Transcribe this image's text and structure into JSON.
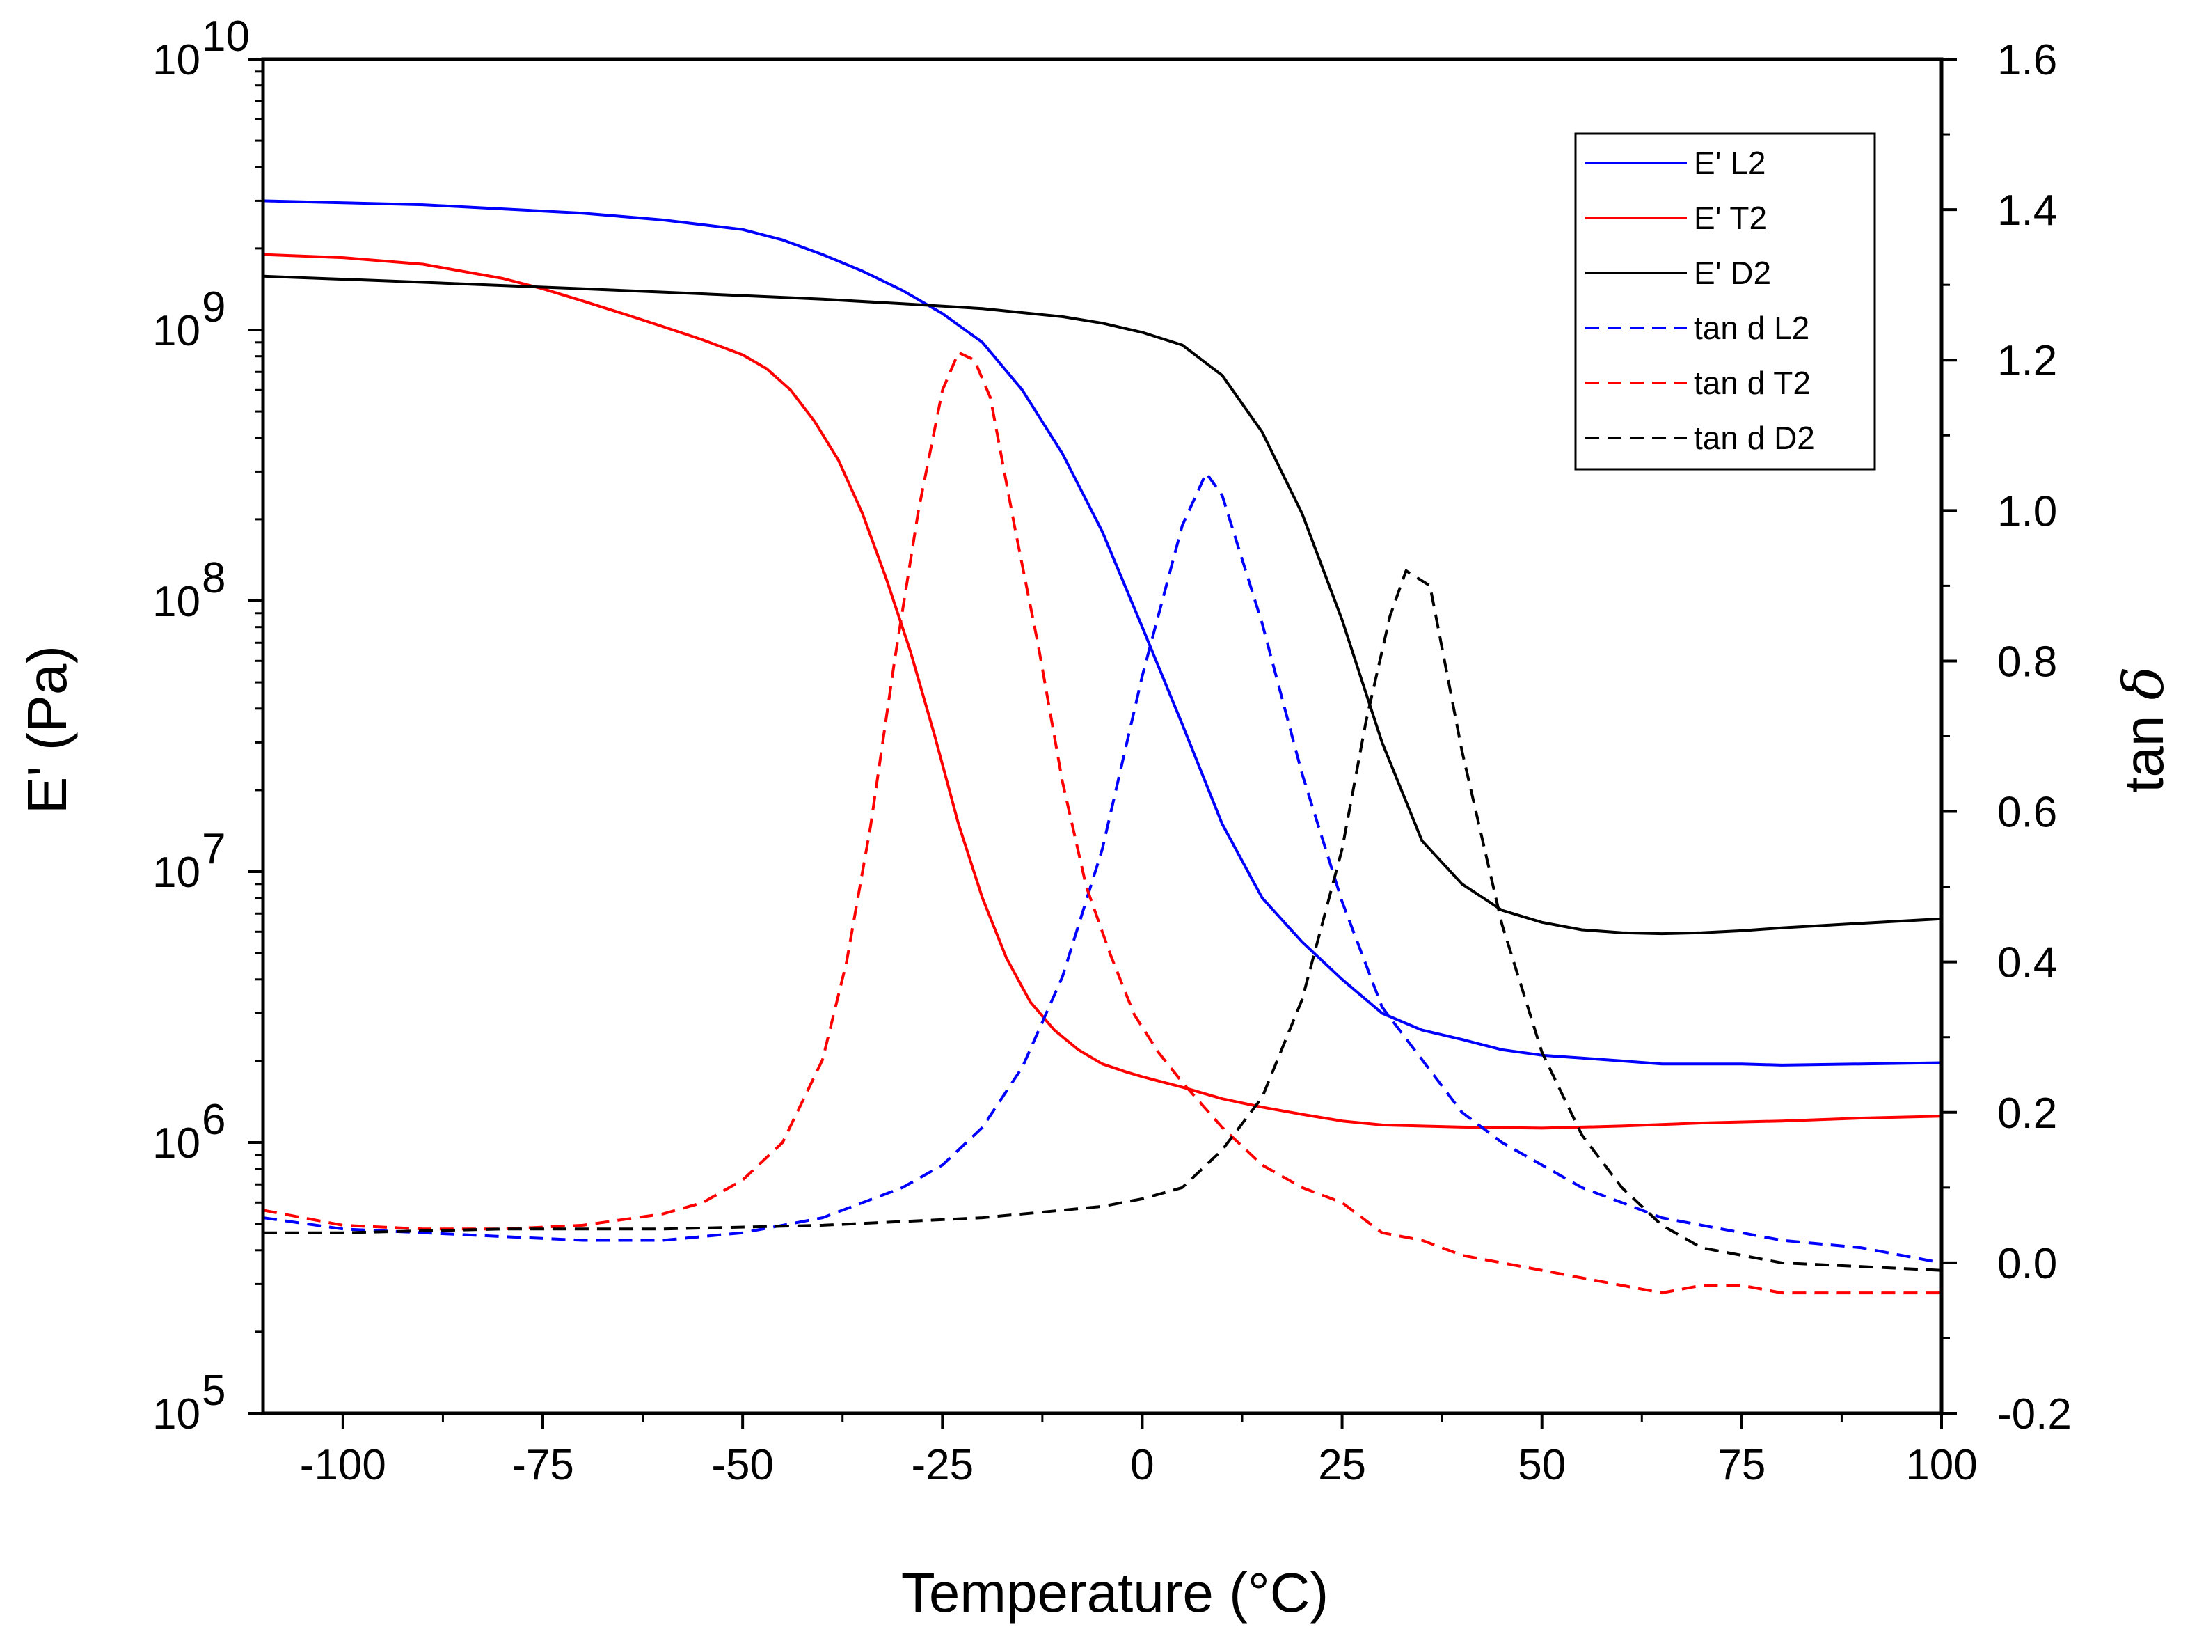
{
  "chart_data": {
    "type": "line",
    "title": "",
    "xlabel": "Temperature (°C)",
    "ylabel_left": "E' (Pa)",
    "ylabel_right_prefix": "tan ",
    "ylabel_right_symbol": "δ",
    "xlim": [
      -110,
      100
    ],
    "ylim_left_log10": [
      5,
      10
    ],
    "ylim_right": [
      -0.2,
      1.6
    ],
    "x_ticks": [
      -100,
      -75,
      -50,
      -25,
      0,
      25,
      50,
      75,
      100
    ],
    "x_tick_labels": [
      "-100",
      "-75",
      "-50",
      "-25",
      "0",
      "25",
      "50",
      "75",
      "100"
    ],
    "left_ticks": [
      {
        "base": "10",
        "exp": "5",
        "log": 5
      },
      {
        "base": "10",
        "exp": "6",
        "log": 6
      },
      {
        "base": "10",
        "exp": "7",
        "log": 7
      },
      {
        "base": "10",
        "exp": "8",
        "log": 8
      },
      {
        "base": "10",
        "exp": "9",
        "log": 9
      },
      {
        "base": "10",
        "exp": "10",
        "log": 10
      }
    ],
    "right_ticks": [
      -0.2,
      0.0,
      0.2,
      0.4,
      0.6,
      0.8,
      1.0,
      1.2,
      1.4,
      1.6
    ],
    "right_tick_labels": [
      "-0.2",
      "0.0",
      "0.2",
      "0.4",
      "0.6",
      "0.8",
      "1.0",
      "1.2",
      "1.4",
      "1.6"
    ],
    "legend_position": "top-right",
    "series": [
      {
        "name": "E' L2",
        "axis": "left",
        "color": "#0000ff",
        "dash": "solid",
        "x": [
          -110,
          -100,
          -90,
          -80,
          -70,
          -60,
          -50,
          -45,
          -40,
          -35,
          -30,
          -25,
          -20,
          -15,
          -10,
          -5,
          0,
          5,
          10,
          15,
          20,
          25,
          30,
          35,
          40,
          45,
          50,
          55,
          60,
          65,
          70,
          75,
          80,
          90,
          100
        ],
        "y": [
          3000000000.0,
          2950000000.0,
          2900000000.0,
          2800000000.0,
          2700000000.0,
          2550000000.0,
          2350000000.0,
          2150000000.0,
          1900000000.0,
          1650000000.0,
          1400000000.0,
          1150000000.0,
          900000000.0,
          600000000.0,
          350000000.0,
          180000000.0,
          80000000.0,
          35000000.0,
          15000000.0,
          8000000.0,
          5500000.0,
          4000000.0,
          3000000.0,
          2600000.0,
          2400000.0,
          2200000.0,
          2100000.0,
          2050000.0,
          2000000.0,
          1950000.0,
          1950000.0,
          1950000.0,
          1930000.0,
          1950000.0,
          1970000.0
        ]
      },
      {
        "name": "E' T2",
        "axis": "left",
        "color": "#ff0000",
        "dash": "solid",
        "x": [
          -110,
          -100,
          -90,
          -80,
          -75,
          -70,
          -65,
          -60,
          -55,
          -50,
          -47,
          -44,
          -41,
          -38,
          -35,
          -32,
          -29,
          -26,
          -23,
          -20,
          -17,
          -14,
          -11,
          -8,
          -5,
          -2,
          0,
          5,
          10,
          15,
          20,
          25,
          30,
          40,
          50,
          60,
          70,
          80,
          90,
          100
        ],
        "y": [
          1900000000.0,
          1850000000.0,
          1750000000.0,
          1550000000.0,
          1420000000.0,
          1280000000.0,
          1150000000.0,
          1030000000.0,
          920000000.0,
          810000000.0,
          720000000.0,
          600000000.0,
          460000000.0,
          330000000.0,
          210000000.0,
          120000000.0,
          65000000.0,
          32000000.0,
          15000000.0,
          8000000.0,
          4800000.0,
          3300000.0,
          2600000.0,
          2200000.0,
          1950000.0,
          1820000.0,
          1750000.0,
          1600000.0,
          1450000.0,
          1350000.0,
          1270000.0,
          1200000.0,
          1160000.0,
          1140000.0,
          1130000.0,
          1150000.0,
          1180000.0,
          1200000.0,
          1230000.0,
          1250000.0
        ]
      },
      {
        "name": "E' D2",
        "axis": "left",
        "color": "#000000",
        "dash": "solid",
        "x": [
          -110,
          -100,
          -90,
          -80,
          -70,
          -60,
          -50,
          -40,
          -30,
          -20,
          -10,
          -5,
          0,
          5,
          10,
          15,
          20,
          25,
          30,
          35,
          40,
          45,
          50,
          55,
          60,
          65,
          70,
          75,
          80,
          90,
          100
        ],
        "y": [
          1580000000.0,
          1540000000.0,
          1500000000.0,
          1460000000.0,
          1420000000.0,
          1380000000.0,
          1340000000.0,
          1300000000.0,
          1250000000.0,
          1200000000.0,
          1120000000.0,
          1060000000.0,
          980000000.0,
          880000000.0,
          680000000.0,
          420000000.0,
          210000000.0,
          85000000.0,
          30000000.0,
          13000000.0,
          9000000.0,
          7200000.0,
          6500000.0,
          6100000.0,
          5950000.0,
          5900000.0,
          5950000.0,
          6050000.0,
          6200000.0,
          6450000.0,
          6700000.0
        ]
      },
      {
        "name": "tan d L2",
        "axis": "right",
        "color": "#0000ff",
        "dash": "dashed",
        "x": [
          -110,
          -100,
          -90,
          -80,
          -70,
          -60,
          -50,
          -40,
          -30,
          -25,
          -20,
          -15,
          -10,
          -5,
          0,
          5,
          8,
          10,
          15,
          20,
          25,
          30,
          35,
          40,
          45,
          50,
          55,
          60,
          65,
          70,
          75,
          80,
          90,
          100
        ],
        "y": [
          0.06,
          0.045,
          0.04,
          0.035,
          0.03,
          0.03,
          0.04,
          0.06,
          0.1,
          0.13,
          0.18,
          0.26,
          0.38,
          0.55,
          0.78,
          0.98,
          1.05,
          1.02,
          0.85,
          0.65,
          0.48,
          0.34,
          0.27,
          0.2,
          0.16,
          0.13,
          0.1,
          0.08,
          0.06,
          0.05,
          0.04,
          0.03,
          0.02,
          0.0
        ]
      },
      {
        "name": "tan d T2",
        "axis": "right",
        "color": "#ff0000",
        "dash": "dashed",
        "x": [
          -110,
          -100,
          -90,
          -80,
          -70,
          -60,
          -55,
          -50,
          -45,
          -40,
          -37,
          -34,
          -31,
          -28,
          -25,
          -23,
          -21,
          -19,
          -16,
          -13,
          -10,
          -7,
          -4,
          -1,
          2,
          5,
          10,
          15,
          20,
          25,
          30,
          35,
          40,
          45,
          50,
          55,
          60,
          65,
          70,
          75,
          80,
          90,
          100
        ],
        "y": [
          0.07,
          0.05,
          0.045,
          0.045,
          0.05,
          0.065,
          0.08,
          0.11,
          0.16,
          0.27,
          0.4,
          0.58,
          0.8,
          1.0,
          1.16,
          1.21,
          1.2,
          1.15,
          0.98,
          0.82,
          0.64,
          0.5,
          0.41,
          0.33,
          0.28,
          0.24,
          0.18,
          0.13,
          0.1,
          0.08,
          0.04,
          0.03,
          0.01,
          0.0,
          -0.01,
          -0.02,
          -0.03,
          -0.04,
          -0.03,
          -0.03,
          -0.04,
          -0.04,
          -0.04
        ]
      },
      {
        "name": "tan d D2",
        "axis": "right",
        "color": "#000000",
        "dash": "dashed",
        "x": [
          -110,
          -100,
          -80,
          -60,
          -40,
          -20,
          -10,
          -5,
          0,
          5,
          10,
          15,
          20,
          25,
          28,
          31,
          33,
          36,
          40,
          45,
          50,
          55,
          60,
          65,
          70,
          75,
          80,
          90,
          100
        ],
        "y": [
          0.04,
          0.04,
          0.045,
          0.045,
          0.05,
          0.06,
          0.07,
          0.075,
          0.085,
          0.1,
          0.15,
          0.22,
          0.35,
          0.55,
          0.72,
          0.86,
          0.92,
          0.9,
          0.68,
          0.45,
          0.28,
          0.17,
          0.1,
          0.05,
          0.02,
          0.01,
          0.0,
          -0.005,
          -0.01
        ]
      }
    ]
  }
}
